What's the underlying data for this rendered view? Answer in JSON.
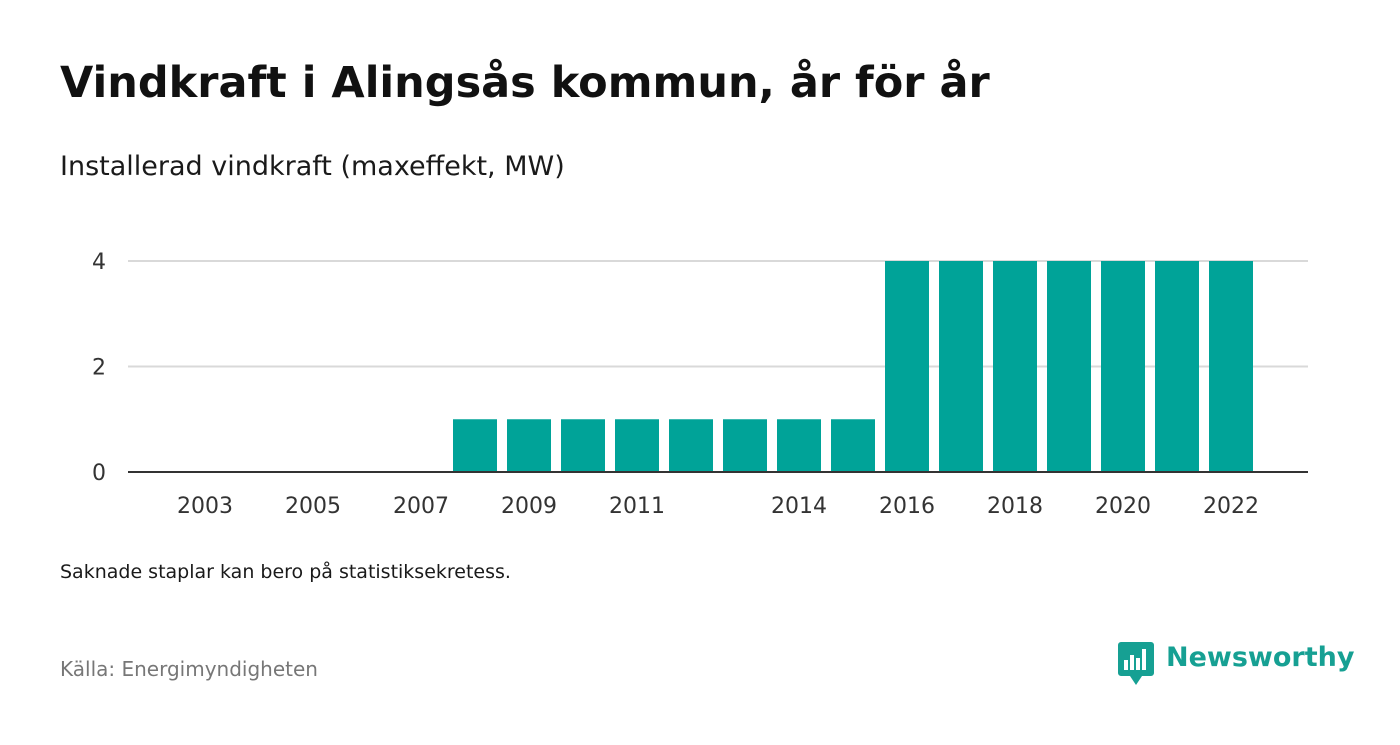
{
  "title": "Vindkraft i Alingsås kommun, år för år",
  "subtitle": "Installerad vindkraft (maxeffekt, MW)",
  "note": "Saknade staplar kan bero på statistiksekretess.",
  "source": "Källa: Energimyndigheten",
  "brand": {
    "name": "Newsworthy",
    "icon": "newsworthy-logo-icon",
    "color": "#16a093"
  },
  "chart_data": {
    "type": "bar",
    "categories": [
      "2003",
      "2004",
      "2005",
      "2006",
      "2007",
      "2008",
      "2009",
      "2010",
      "2011",
      "2012",
      "2013",
      "2014",
      "2015",
      "2016",
      "2017",
      "2018",
      "2019",
      "2020",
      "2021",
      "2022"
    ],
    "values": [
      0,
      0,
      0,
      0,
      0,
      1,
      1,
      1,
      1,
      1,
      1,
      1,
      1,
      4,
      4,
      4,
      4,
      4,
      4,
      4
    ],
    "xtick_labels": [
      "2003",
      "2005",
      "2007",
      "2009",
      "2011",
      "2014",
      "2016",
      "2018",
      "2020",
      "2022"
    ],
    "ytick_labels": [
      "0",
      "2",
      "4"
    ],
    "ylim": [
      0,
      4
    ],
    "grid": true,
    "bar_color": "#00a398",
    "title": "Vindkraft i Alingsås kommun, år för år",
    "subtitle": "Installerad vindkraft (maxeffekt, MW)",
    "xlabel": "",
    "ylabel": ""
  }
}
